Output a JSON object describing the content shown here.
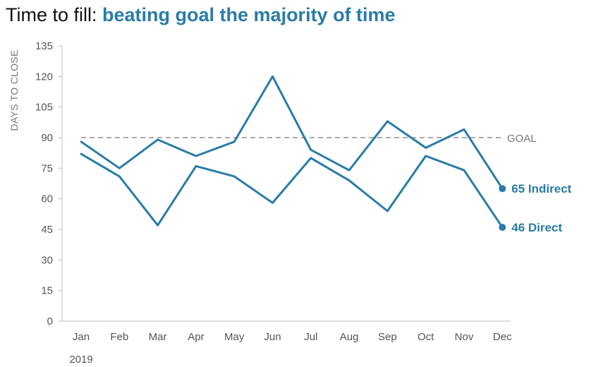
{
  "title": {
    "lead": "Time to fill: ",
    "emphasis": "beating goal the majority of time"
  },
  "colors": {
    "accent": "#2a7ca6",
    "goal_line": "#aaaaaa",
    "axis": "#bdbdbd",
    "text_muted": "#777777"
  },
  "chart_data": {
    "type": "line",
    "title": "Time to fill: beating goal the majority of time",
    "xlabel": "",
    "ylabel": "DAYS TO CLOSE",
    "year_label": "2019",
    "categories": [
      "Jan",
      "Feb",
      "Mar",
      "Apr",
      "May",
      "Jun",
      "Jul",
      "Aug",
      "Sep",
      "Oct",
      "Nov",
      "Dec"
    ],
    "ylim": [
      0,
      135
    ],
    "yticks": [
      0,
      15,
      30,
      45,
      60,
      75,
      90,
      105,
      120,
      135
    ],
    "grid": false,
    "goal": {
      "value": 90,
      "label": "GOAL"
    },
    "series": [
      {
        "name": "Indirect",
        "end_label": "65 Indirect",
        "values": [
          88,
          75,
          89,
          81,
          88,
          120,
          84,
          74,
          98,
          85,
          94,
          65
        ]
      },
      {
        "name": "Direct",
        "end_label": "46 Direct",
        "values": [
          82,
          71,
          47,
          76,
          71,
          58,
          80,
          69,
          54,
          81,
          74,
          46
        ]
      }
    ]
  }
}
